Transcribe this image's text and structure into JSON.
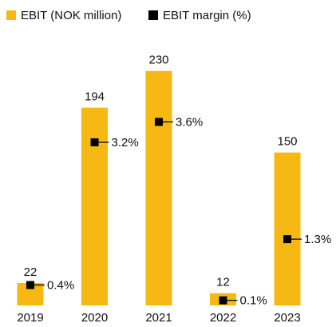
{
  "chart_data": {
    "type": "bar",
    "categories": [
      "2019",
      "2020",
      "2021",
      "2022",
      "2023"
    ],
    "series": [
      {
        "name": "EBIT (NOK million)",
        "color": "#f6b813",
        "values": [
          22,
          194,
          230,
          12,
          150
        ]
      },
      {
        "name": "EBIT margin (%)",
        "color": "#000000",
        "axis": "y2",
        "values": [
          0.4,
          3.2,
          3.6,
          0.1,
          1.3
        ],
        "value_labels": [
          "0.4%",
          "3.2%",
          "3.6%",
          "0.1%",
          "1.3%"
        ]
      }
    ],
    "ylim": [
      0,
      240
    ],
    "y2lim": [
      0,
      4.8
    ],
    "legend": "top-left"
  }
}
